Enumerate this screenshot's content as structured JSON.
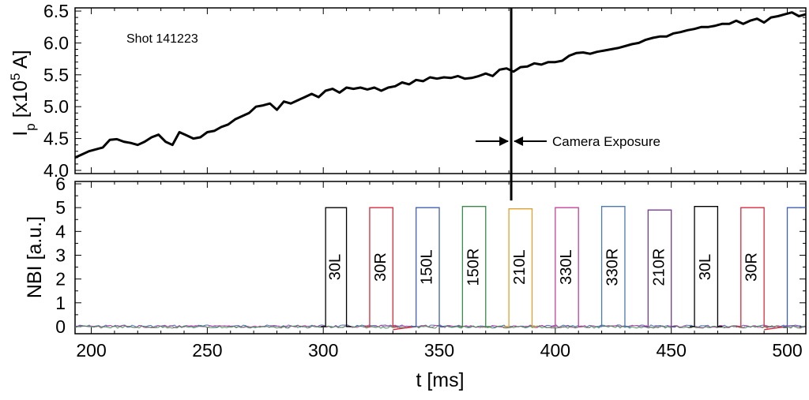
{
  "chart_data": [
    {
      "type": "line",
      "annotation": "Shot 141223",
      "ylabel": {
        "main": "I",
        "sub": "p",
        "pre": " [x10",
        "sup": "5",
        "post": " A]"
      },
      "xlim": [
        193,
        508
      ],
      "ylim": [
        3.95,
        6.55
      ],
      "yticks": [
        4.0,
        4.5,
        5.0,
        5.5,
        6.0,
        6.5
      ],
      "ytick_labels": [
        "4.0",
        "4.5",
        "5.0",
        "5.5",
        "6.0",
        "6.5"
      ],
      "series": [
        {
          "color": "#000000",
          "x": [
            193,
            196,
            199,
            202,
            205,
            208,
            211,
            214,
            217,
            220,
            223,
            226,
            229,
            232,
            235,
            238,
            241,
            244,
            247,
            250,
            253,
            256,
            259,
            262,
            265,
            268,
            271,
            274,
            277,
            280,
            283,
            286,
            289,
            292,
            295,
            298,
            301,
            304,
            307,
            310,
            313,
            316,
            319,
            322,
            325,
            328,
            331,
            334,
            337,
            340,
            343,
            346,
            349,
            352,
            355,
            358,
            361,
            364,
            367,
            370,
            373,
            376,
            379,
            382,
            385,
            388,
            391,
            394,
            397,
            400,
            403,
            406,
            409,
            412,
            415,
            418,
            421,
            424,
            427,
            430,
            433,
            436,
            439,
            442,
            445,
            448,
            451,
            454,
            457,
            460,
            463,
            466,
            469,
            472,
            475,
            478,
            481,
            484,
            487,
            490,
            493,
            496,
            499,
            502,
            505,
            508
          ],
          "y": [
            4.2,
            4.25,
            4.3,
            4.33,
            4.36,
            4.48,
            4.49,
            4.45,
            4.43,
            4.4,
            4.45,
            4.52,
            4.56,
            4.45,
            4.4,
            4.6,
            4.55,
            4.5,
            4.52,
            4.6,
            4.62,
            4.68,
            4.72,
            4.8,
            4.85,
            4.9,
            5.0,
            5.02,
            5.05,
            4.95,
            5.08,
            5.05,
            5.1,
            5.15,
            5.2,
            5.15,
            5.25,
            5.28,
            5.22,
            5.3,
            5.28,
            5.3,
            5.27,
            5.3,
            5.25,
            5.3,
            5.32,
            5.38,
            5.35,
            5.42,
            5.4,
            5.46,
            5.44,
            5.46,
            5.45,
            5.48,
            5.44,
            5.45,
            5.48,
            5.52,
            5.48,
            5.58,
            5.6,
            5.55,
            5.62,
            5.63,
            5.68,
            5.66,
            5.7,
            5.7,
            5.72,
            5.8,
            5.84,
            5.85,
            5.83,
            5.86,
            5.88,
            5.9,
            5.92,
            5.95,
            5.98,
            6.0,
            6.05,
            6.08,
            6.1,
            6.1,
            6.15,
            6.17,
            6.2,
            6.22,
            6.25,
            6.25,
            6.27,
            6.3,
            6.3,
            6.35,
            6.3,
            6.35,
            6.38,
            6.32,
            6.4,
            6.42,
            6.45,
            6.48,
            6.42,
            6.45
          ]
        }
      ],
      "marker_x": 381,
      "arrow_label": "Camera Exposure",
      "grid": false
    },
    {
      "type": "line",
      "ylabel": "NBI [a.u.]",
      "xlabel": "t [ms]",
      "xlim": [
        193,
        508
      ],
      "ylim": [
        -0.3,
        6.1
      ],
      "xticks": [
        200,
        250,
        300,
        350,
        400,
        450,
        500
      ],
      "xtick_labels": [
        "200",
        "250",
        "300",
        "350",
        "400",
        "450",
        "500"
      ],
      "yticks": [
        0,
        1,
        2,
        3,
        4,
        5,
        6
      ],
      "ytick_labels": [
        "0",
        "1",
        "2",
        "3",
        "4",
        "5",
        "6"
      ],
      "pulses": [
        {
          "label": "30L",
          "start": 301,
          "end": 310,
          "value": 5.0,
          "color": "#000000"
        },
        {
          "label": "30R",
          "start": 320,
          "end": 330,
          "value": 5.0,
          "color": "#d42b3c"
        },
        {
          "label": "150L",
          "start": 340,
          "end": 350,
          "value": 5.0,
          "color": "#3f5fb0"
        },
        {
          "label": "150R",
          "start": 360,
          "end": 370,
          "value": 5.05,
          "color": "#3a8a4a"
        },
        {
          "label": "210L",
          "start": 380,
          "end": 390,
          "value": 4.95,
          "color": "#e0a030"
        },
        {
          "label": "330L",
          "start": 400,
          "end": 410,
          "value": 5.0,
          "color": "#c0439a"
        },
        {
          "label": "330R",
          "start": 420,
          "end": 430,
          "value": 5.05,
          "color": "#4a7ab5"
        },
        {
          "label": "210R",
          "start": 440,
          "end": 450,
          "value": 4.9,
          "color": "#7a3a9a"
        },
        {
          "label": "30L",
          "start": 460,
          "end": 470,
          "value": 5.05,
          "color": "#000000"
        },
        {
          "label": "30R",
          "start": 480,
          "end": 490,
          "value": 5.0,
          "color": "#d42b3c"
        },
        {
          "label": "",
          "start": 500,
          "end": 510,
          "value": 5.0,
          "color": "#3f5fb0"
        }
      ],
      "grid": false
    }
  ]
}
